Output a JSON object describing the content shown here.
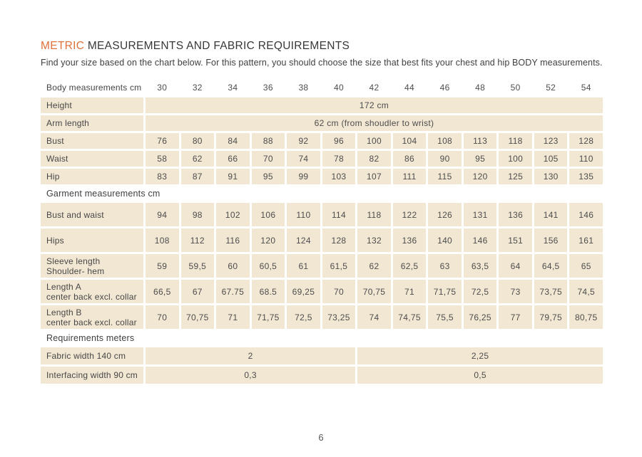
{
  "header": {
    "title_accent": "METRIC",
    "title_rest": "MEASUREMENTS AND FABRIC REQUIREMENTS",
    "subtitle": "Find your size based on the chart below. For this pattern, you should choose the size that best fits your chest and hip BODY measurements."
  },
  "colors": {
    "accent_orange": "#DE7139",
    "cell_beige": "#F2E7D3",
    "text_dark": "#3F3F3F"
  },
  "table": {
    "header_label": "Body measurements cm",
    "sizes": [
      "30",
      "32",
      "34",
      "36",
      "38",
      "40",
      "42",
      "44",
      "46",
      "48",
      "50",
      "52",
      "54"
    ],
    "rows": [
      {
        "type": "span",
        "label": "Height",
        "value": "172 cm"
      },
      {
        "type": "span",
        "label": "Arm length",
        "value": "62 cm (from shoudler to wrist)"
      },
      {
        "type": "cells",
        "label": "Bust",
        "values": [
          "76",
          "80",
          "84",
          "88",
          "92",
          "96",
          "100",
          "104",
          "108",
          "113",
          "118",
          "123",
          "128"
        ]
      },
      {
        "type": "cells",
        "label": "Waist",
        "values": [
          "58",
          "62",
          "66",
          "70",
          "74",
          "78",
          "82",
          "86",
          "90",
          "95",
          "100",
          "105",
          "110"
        ]
      },
      {
        "type": "cells",
        "label": "Hip",
        "values": [
          "83",
          "87",
          "91",
          "95",
          "99",
          "103",
          "107",
          "111",
          "115",
          "120",
          "125",
          "130",
          "135"
        ]
      },
      {
        "type": "section",
        "label": "Garment measurements cm"
      },
      {
        "type": "cells",
        "tall": true,
        "label": "Bust and waist",
        "values": [
          "94",
          "98",
          "102",
          "106",
          "110",
          "114",
          "118",
          "122",
          "126",
          "131",
          "136",
          "141",
          "146"
        ]
      },
      {
        "type": "cells",
        "tall": true,
        "label": "Hips",
        "values": [
          "108",
          "112",
          "116",
          "120",
          "124",
          "128",
          "132",
          "136",
          "140",
          "146",
          "151",
          "156",
          "161"
        ]
      },
      {
        "type": "cells",
        "tall": true,
        "label": "Sleeve length",
        "label2": "Shoulder- hem",
        "values": [
          "59",
          "59,5",
          "60",
          "60,5",
          "61",
          "61,5",
          "62",
          "62,5",
          "63",
          "63,5",
          "64",
          "64,5",
          "65"
        ]
      },
      {
        "type": "cells",
        "tall": true,
        "label": "Length A",
        "label2": "center back excl. collar",
        "values": [
          "66,5",
          "67",
          "67.75",
          "68.5",
          "69,25",
          "70",
          "70,75",
          "71",
          "71,75",
          "72,5",
          "73",
          "73,75",
          "74,5"
        ]
      },
      {
        "type": "cells",
        "tall": true,
        "label": "Length B",
        "label2": "center back excl. collar",
        "values": [
          "70",
          "70,75",
          "71",
          "71,75",
          "72,5",
          "73,25",
          "74",
          "74,75",
          "75,5",
          "76,25",
          "77",
          "79,75",
          "80,75"
        ]
      },
      {
        "type": "section",
        "label": "Requirements meters"
      },
      {
        "type": "split",
        "label": "Fabric width 140 cm",
        "left": "2",
        "right": "2,25"
      },
      {
        "type": "split",
        "label": "Interfacing width 90 cm",
        "left": "0,3",
        "right": "0,5"
      }
    ]
  },
  "footer": {
    "page_number": "6"
  }
}
